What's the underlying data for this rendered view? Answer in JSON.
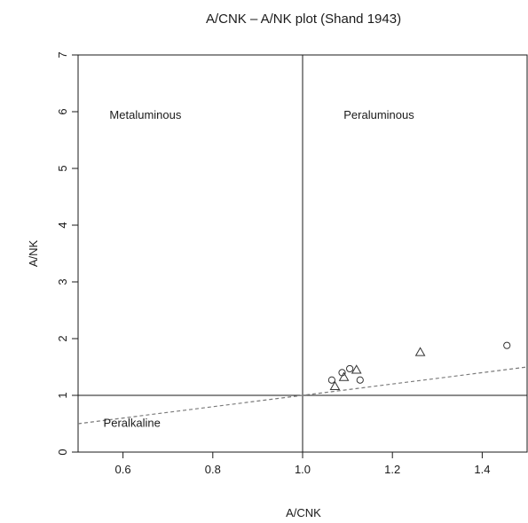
{
  "chart_data": {
    "type": "scatter",
    "title": "A/CNK – A/NK plot (Shand 1943)",
    "xlabel": "A/CNK",
    "ylabel": "A/NK",
    "xlim": [
      0.5,
      1.5
    ],
    "ylim": [
      0,
      7
    ],
    "x_ticks": [
      "0.6",
      "0.8",
      "1.0",
      "1.2",
      "1.4"
    ],
    "y_ticks": [
      "0",
      "1",
      "2",
      "3",
      "4",
      "5",
      "6",
      "7"
    ],
    "grid": false,
    "legend": "none",
    "reference_lines": {
      "vertical_x": 1.0,
      "horizontal_y": 1.0,
      "dashed_line": {
        "points": [
          [
            0.5,
            0.5
          ],
          [
            1.5,
            1.5
          ]
        ],
        "style": "dashed"
      }
    },
    "region_labels": [
      {
        "text": "Metaluminous",
        "x": 0.65,
        "y": 5.95
      },
      {
        "text": "Peraluminous",
        "x": 1.17,
        "y": 5.95
      },
      {
        "text": "Peralkaline",
        "x": 0.62,
        "y": 0.52
      }
    ],
    "series": [
      {
        "marker": "circle",
        "points": [
          {
            "x": 1.065,
            "y": 1.27
          },
          {
            "x": 1.088,
            "y": 1.4
          },
          {
            "x": 1.105,
            "y": 1.47
          },
          {
            "x": 1.128,
            "y": 1.27
          },
          {
            "x": 1.455,
            "y": 1.88
          }
        ]
      },
      {
        "marker": "triangle",
        "points": [
          {
            "x": 1.072,
            "y": 1.16
          },
          {
            "x": 1.092,
            "y": 1.32
          },
          {
            "x": 1.12,
            "y": 1.45
          },
          {
            "x": 1.262,
            "y": 1.76
          }
        ]
      }
    ],
    "colors": {
      "axis": "#1a1a1a",
      "line": "#1a1a1a",
      "dashed": "#7a7a7a",
      "marker": "#333333"
    }
  }
}
